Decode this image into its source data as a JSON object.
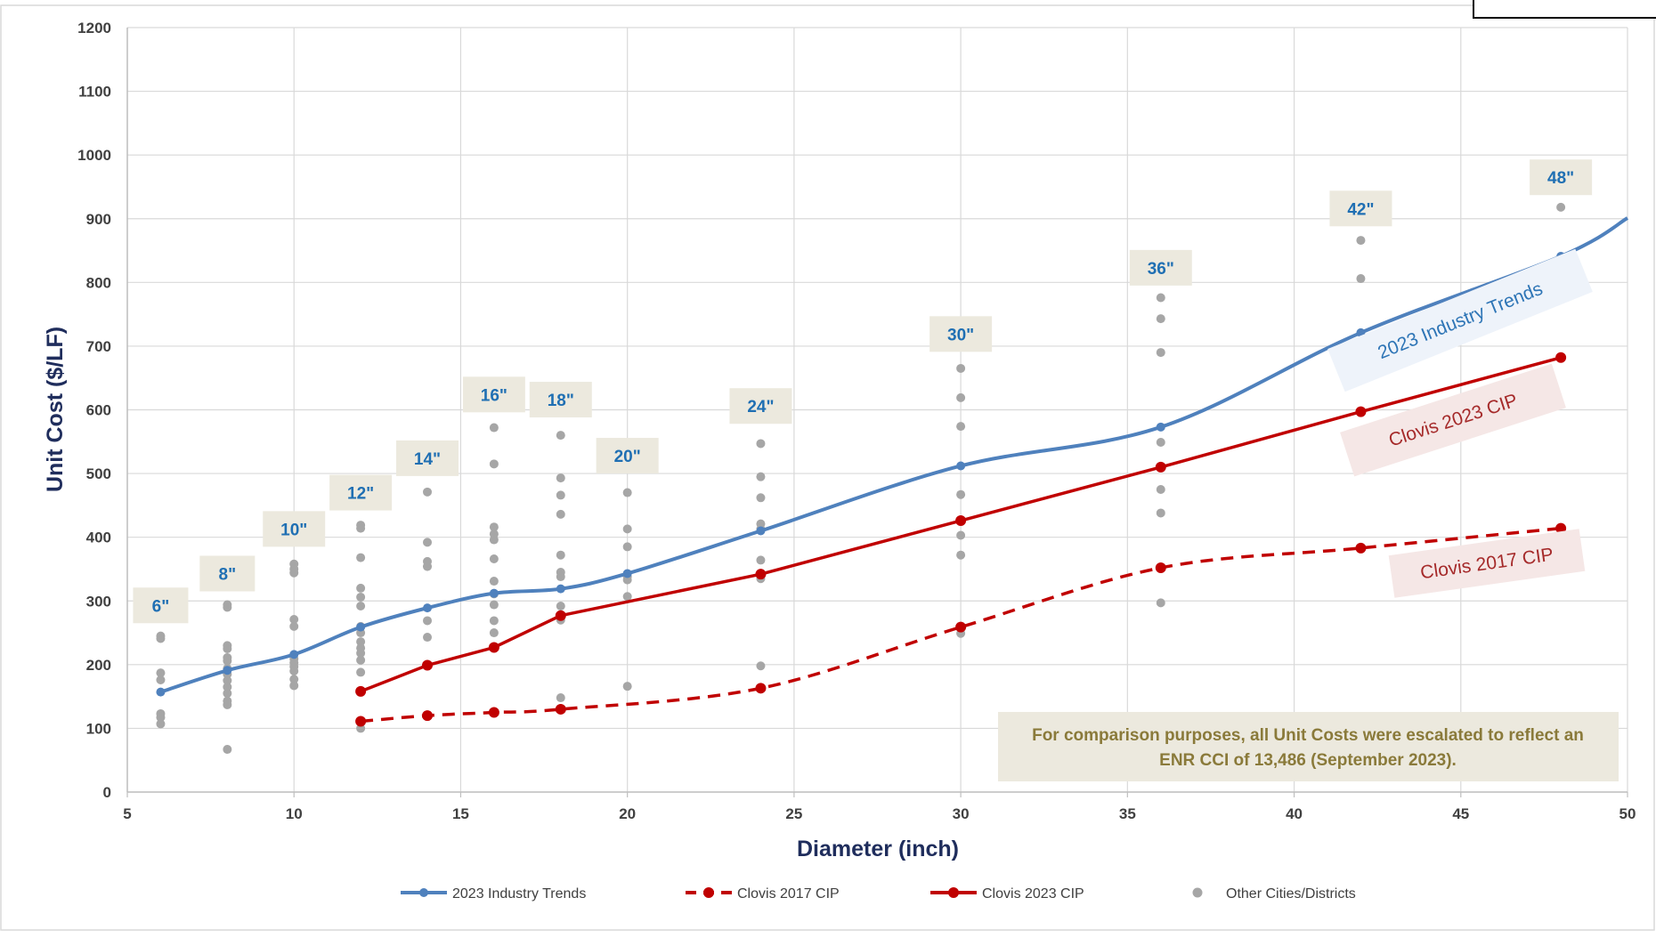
{
  "chart_data": {
    "type": "line",
    "xlabel": "Diameter (inch)",
    "ylabel": "Unit Cost ($/LF)",
    "xlim": [
      5,
      50
    ],
    "ylim": [
      0,
      1200
    ],
    "x_ticks": [
      "5",
      "10",
      "15",
      "20",
      "25",
      "30",
      "35",
      "40",
      "45",
      "50"
    ],
    "y_ticks": [
      "0",
      "100",
      "200",
      "300",
      "400",
      "500",
      "600",
      "700",
      "800",
      "900",
      "1000",
      "1100",
      "1200"
    ],
    "grid": true,
    "legend_position": "bottom",
    "series": [
      {
        "name": "2023 Industry Trends",
        "color": "#4f81bd",
        "line_style": "solid",
        "x": [
          6,
          8,
          10,
          12,
          14,
          16,
          18,
          20,
          24,
          30,
          36,
          42,
          48
        ],
        "y": [
          157,
          191,
          216,
          259,
          289,
          312,
          319,
          343,
          410,
          512,
          573,
          721,
          841
        ],
        "extends_to": [
          50,
          901
        ]
      },
      {
        "name": "Clovis 2017 CIP",
        "color": "#c00000",
        "line_style": "dashed",
        "x": [
          12,
          14,
          16,
          18,
          24,
          30,
          36,
          42,
          48
        ],
        "y": [
          111,
          120,
          125,
          130,
          163,
          259,
          352,
          383,
          414
        ]
      },
      {
        "name": "Clovis 2023 CIP",
        "color": "#c00000",
        "line_style": "solid",
        "x": [
          12,
          14,
          16,
          18,
          24,
          30,
          36,
          42,
          48
        ],
        "y": [
          158,
          199,
          227,
          277,
          342,
          426,
          510,
          597,
          682
        ]
      },
      {
        "name": "Other Cities/Districts",
        "color": "#a6a6a6",
        "type": "scatter",
        "points": [
          [
            6,
            245
          ],
          [
            6,
            241
          ],
          [
            6,
            187
          ],
          [
            6,
            176
          ],
          [
            6,
            123
          ],
          [
            6,
            117
          ],
          [
            6,
            107
          ],
          [
            8,
            294
          ],
          [
            8,
            290
          ],
          [
            8,
            230
          ],
          [
            8,
            225
          ],
          [
            8,
            211
          ],
          [
            8,
            206
          ],
          [
            8,
            194
          ],
          [
            8,
            185
          ],
          [
            8,
            175
          ],
          [
            8,
            165
          ],
          [
            8,
            155
          ],
          [
            8,
            143
          ],
          [
            8,
            137
          ],
          [
            8,
            67
          ],
          [
            10,
            358
          ],
          [
            10,
            350
          ],
          [
            10,
            344
          ],
          [
            10,
            271
          ],
          [
            10,
            260
          ],
          [
            10,
            209
          ],
          [
            10,
            203
          ],
          [
            10,
            197
          ],
          [
            10,
            190
          ],
          [
            10,
            177
          ],
          [
            10,
            167
          ],
          [
            12,
            419
          ],
          [
            12,
            414
          ],
          [
            12,
            368
          ],
          [
            12,
            320
          ],
          [
            12,
            306
          ],
          [
            12,
            292
          ],
          [
            12,
            260
          ],
          [
            12,
            250
          ],
          [
            12,
            236
          ],
          [
            12,
            226
          ],
          [
            12,
            218
          ],
          [
            12,
            207
          ],
          [
            12,
            188
          ],
          [
            12,
            100
          ],
          [
            14,
            471
          ],
          [
            14,
            392
          ],
          [
            14,
            362
          ],
          [
            14,
            354
          ],
          [
            14,
            269
          ],
          [
            14,
            243
          ],
          [
            16,
            572
          ],
          [
            16,
            515
          ],
          [
            16,
            416
          ],
          [
            16,
            405
          ],
          [
            16,
            396
          ],
          [
            16,
            366
          ],
          [
            16,
            331
          ],
          [
            16,
            311
          ],
          [
            16,
            294
          ],
          [
            16,
            269
          ],
          [
            16,
            250
          ],
          [
            18,
            560
          ],
          [
            18,
            493
          ],
          [
            18,
            466
          ],
          [
            18,
            436
          ],
          [
            18,
            372
          ],
          [
            18,
            345
          ],
          [
            18,
            338
          ],
          [
            18,
            292
          ],
          [
            18,
            270
          ],
          [
            18,
            148
          ],
          [
            20,
            470
          ],
          [
            20,
            413
          ],
          [
            20,
            385
          ],
          [
            20,
            338
          ],
          [
            20,
            333
          ],
          [
            20,
            307
          ],
          [
            20,
            166
          ],
          [
            24,
            547
          ],
          [
            24,
            495
          ],
          [
            24,
            462
          ],
          [
            24,
            421
          ],
          [
            24,
            413
          ],
          [
            24,
            364
          ],
          [
            24,
            335
          ],
          [
            24,
            198
          ],
          [
            30,
            665
          ],
          [
            30,
            619
          ],
          [
            30,
            574
          ],
          [
            30,
            467
          ],
          [
            30,
            403
          ],
          [
            30,
            372
          ],
          [
            30,
            249
          ],
          [
            36,
            776
          ],
          [
            36,
            743
          ],
          [
            36,
            690
          ],
          [
            36,
            549
          ],
          [
            36,
            475
          ],
          [
            36,
            438
          ],
          [
            36,
            297
          ],
          [
            42,
            866
          ],
          [
            42,
            806
          ],
          [
            48,
            918
          ]
        ]
      }
    ],
    "size_labels": [
      {
        "text": "6\"",
        "x": 6,
        "y": 293
      },
      {
        "text": "8\"",
        "x": 8,
        "y": 343
      },
      {
        "text": "10\"",
        "x": 10,
        "y": 413
      },
      {
        "text": "12\"",
        "x": 12,
        "y": 470
      },
      {
        "text": "14\"",
        "x": 14,
        "y": 524
      },
      {
        "text": "16\"",
        "x": 16,
        "y": 624
      },
      {
        "text": "18\"",
        "x": 18,
        "y": 616
      },
      {
        "text": "20\"",
        "x": 20,
        "y": 528
      },
      {
        "text": "24\"",
        "x": 24,
        "y": 606
      },
      {
        "text": "30\"",
        "x": 30,
        "y": 719
      },
      {
        "text": "36\"",
        "x": 36,
        "y": 823
      },
      {
        "text": "42\"",
        "x": 42,
        "y": 916
      },
      {
        "text": "48\"",
        "x": 48,
        "y": 965
      }
    ],
    "curve_labels": [
      {
        "text": "2023 Industry Trends",
        "series": "2023 Industry Trends"
      },
      {
        "text": "Clovis 2023 CIP",
        "series": "Clovis 2023 CIP"
      },
      {
        "text": "Clovis 2017 CIP",
        "series": "Clovis 2017 CIP"
      }
    ],
    "note": {
      "line1": "For comparison purposes, all Unit Costs were escalated to reflect an",
      "line2": "ENR CCI of 13,486 (September 2023)."
    }
  }
}
